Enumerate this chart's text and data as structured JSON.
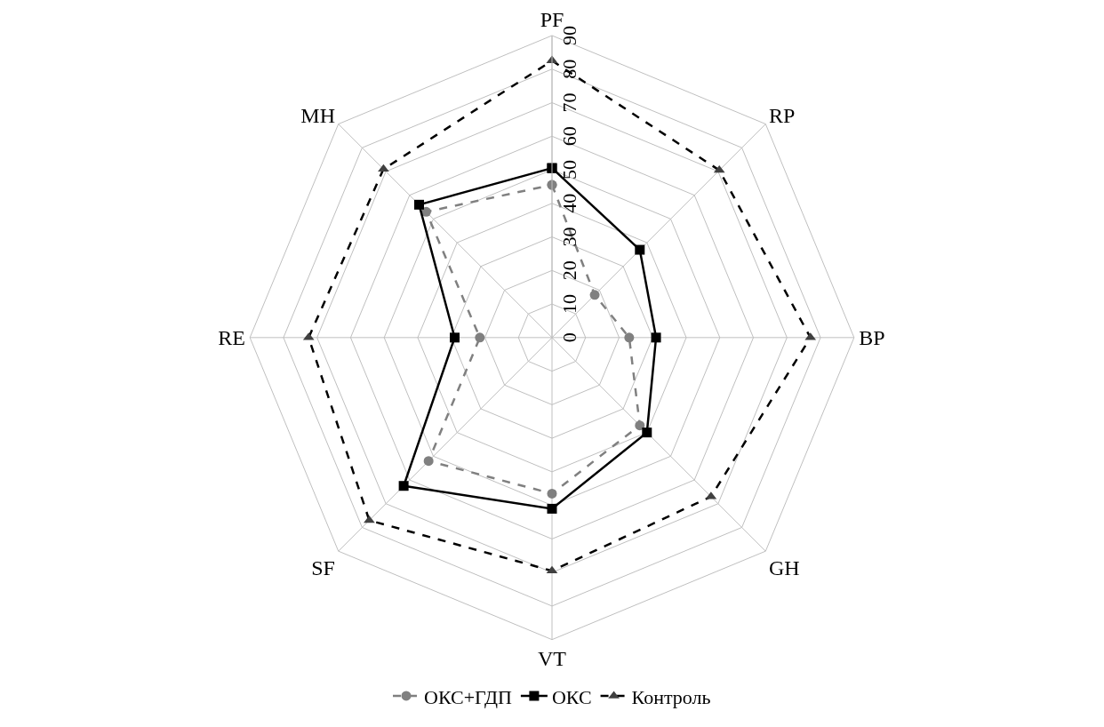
{
  "chart_data": {
    "type": "radar",
    "categories": [
      "PF",
      "RP",
      "BP",
      "GH",
      "VT",
      "SF",
      "RE",
      "MH"
    ],
    "ylim": [
      0,
      90
    ],
    "yticks": [
      0,
      10,
      20,
      30,
      40,
      50,
      60,
      70,
      80,
      90
    ],
    "grid": true,
    "legend": "bottom",
    "series": [
      {
        "name": "ОКС+ГДП",
        "color": "#808080",
        "line_style": "dashed",
        "marker": "circle",
        "values": [
          45.5,
          18,
          23,
          37,
          46.5,
          52,
          21.5,
          53
        ]
      },
      {
        "name": "ОКС",
        "color": "#000000",
        "line_style": "solid",
        "marker": "square",
        "values": [
          50.5,
          37,
          31,
          40,
          51,
          62.5,
          29,
          56
        ]
      },
      {
        "name": "Контроль",
        "color": "#000000",
        "line_style": "dashed",
        "marker": "triangle",
        "values": [
          82.5,
          70.5,
          77,
          67,
          69.5,
          77,
          72.5,
          71
        ]
      }
    ]
  }
}
